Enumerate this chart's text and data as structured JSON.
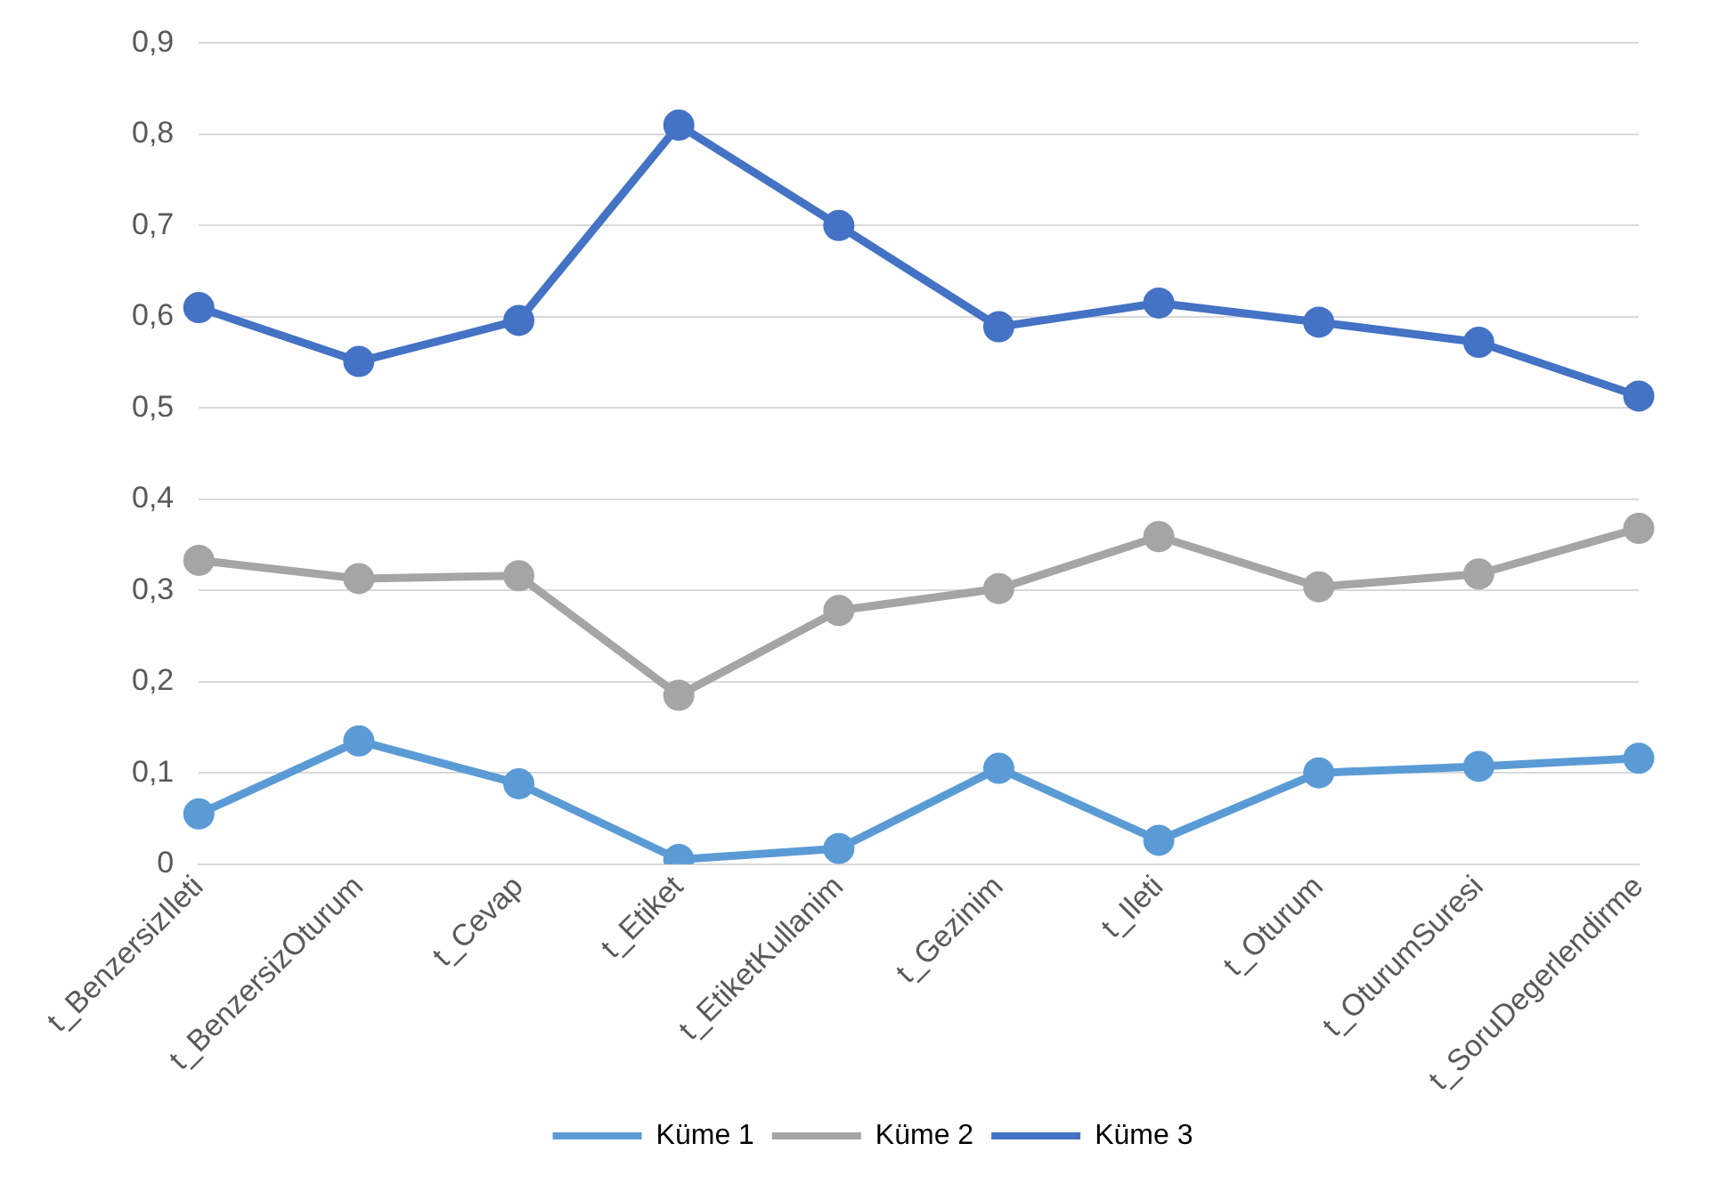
{
  "chart_data": {
    "type": "line",
    "categories": [
      "t_BenzersizIleti",
      "t_BenzersizOturum",
      "t_Cevap",
      "t_Etiket",
      "t_EtiketKullanim",
      "t_Gezinim",
      "t_Ileti",
      "t_Oturum",
      "t_OturumSuresi",
      "t_SoruDegerlendirme"
    ],
    "series": [
      {
        "name": "Küme 1",
        "color": "#5b9bd5",
        "values": [
          0.055,
          0.135,
          0.088,
          0.005,
          0.017,
          0.105,
          0.026,
          0.1,
          0.107,
          0.116
        ]
      },
      {
        "name": "Küme 2",
        "color": "#a5a5a5",
        "values": [
          0.333,
          0.313,
          0.316,
          0.185,
          0.278,
          0.302,
          0.359,
          0.304,
          0.318,
          0.368
        ]
      },
      {
        "name": "Küme 3",
        "color": "#4472c4",
        "values": [
          0.61,
          0.551,
          0.596,
          0.81,
          0.7,
          0.589,
          0.615,
          0.594,
          0.572,
          0.513
        ]
      }
    ],
    "ylim": [
      0,
      0.9
    ],
    "yticks": [
      {
        "value": 0,
        "label": "0"
      },
      {
        "value": 0.1,
        "label": "0,1"
      },
      {
        "value": 0.2,
        "label": "0,2"
      },
      {
        "value": 0.3,
        "label": "0,3"
      },
      {
        "value": 0.4,
        "label": "0,4"
      },
      {
        "value": 0.5,
        "label": "0,5"
      },
      {
        "value": 0.6,
        "label": "0,6"
      },
      {
        "value": 0.7,
        "label": "0,7"
      },
      {
        "value": 0.8,
        "label": "0,8"
      },
      {
        "value": 0.9,
        "label": "0,9"
      }
    ],
    "grid": "y",
    "legend": "bottom",
    "marker": "circle",
    "line_style": "solid"
  }
}
